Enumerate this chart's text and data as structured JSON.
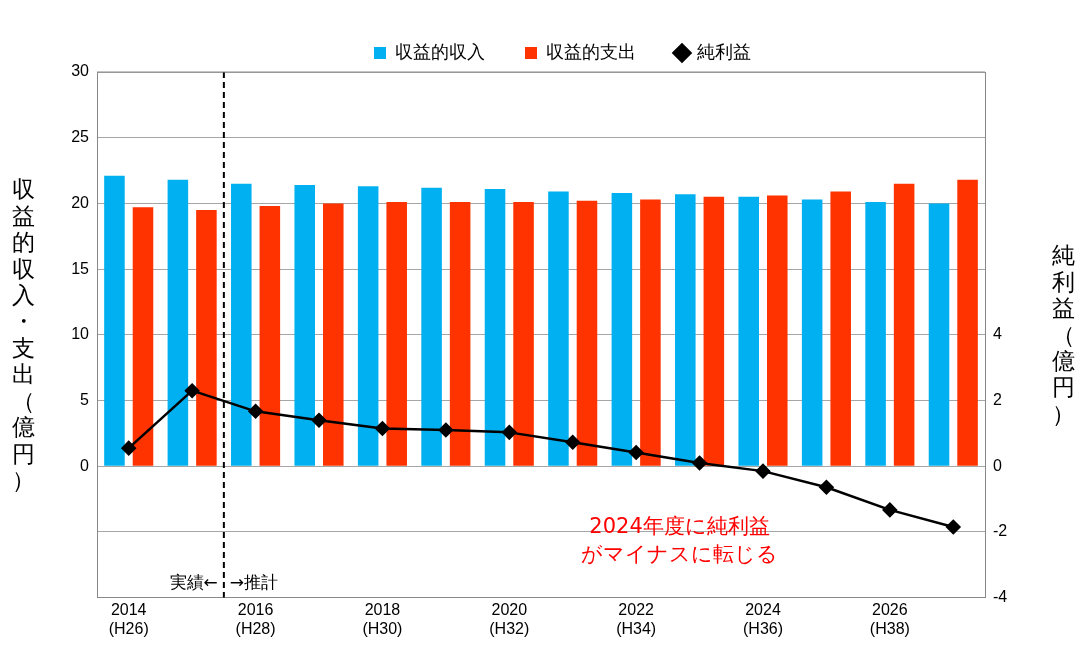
{
  "chart_data": {
    "type": "bar",
    "categories": [
      "2014\n(H26)",
      null,
      "2016\n(H28)",
      null,
      "2018\n(H30)",
      null,
      "2020\n(H32)",
      null,
      "2022\n(H34)",
      null,
      "2024\n(H36)",
      null,
      "2026\n(H38)",
      null
    ],
    "series": [
      {
        "name": "収益的収入",
        "color": "#00b0f0",
        "values": [
          22.1,
          21.8,
          21.5,
          21.4,
          21.3,
          21.2,
          21.1,
          20.9,
          20.8,
          20.7,
          20.5,
          20.3,
          20.1,
          20.0
        ]
      },
      {
        "name": "収益的支出",
        "color": "#ff3300",
        "values": [
          19.7,
          19.5,
          19.8,
          20.0,
          20.1,
          20.1,
          20.1,
          20.2,
          20.3,
          20.5,
          20.6,
          20.9,
          21.5,
          21.8
        ]
      },
      {
        "name": "純利益",
        "color": "#000000",
        "type": "line",
        "axis": "y2",
        "marker": "diamond",
        "values": [
          0.55,
          2.3,
          1.67,
          1.4,
          1.15,
          1.1,
          1.03,
          0.73,
          0.42,
          0.1,
          -0.15,
          -0.64,
          -1.33,
          -1.85
        ]
      }
    ],
    "ylabel": "収益的収入・支出（億円）",
    "y2label": "純利益（億円）",
    "ylim": [
      -10,
      30
    ],
    "yticks": [
      {
        "value": -10,
        "label": null
      },
      {
        "value": -5,
        "label": null
      },
      0,
      5,
      10,
      15,
      20,
      25,
      30
    ],
    "y2lim": [
      -4,
      12
    ],
    "y2ticks": [
      -4,
      -2,
      0,
      2,
      4
    ],
    "annotations": [
      "実績←",
      "→推計",
      "2024年度に純利益がマイナスに転じる"
    ],
    "grid": "y",
    "legend": "top"
  }
}
